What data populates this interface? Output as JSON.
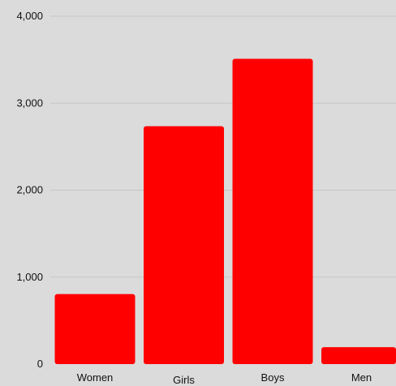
{
  "chart_data": {
    "type": "bar",
    "title": "",
    "xlabel": "",
    "ylabel": "",
    "categories": [
      "Women",
      "Girls",
      "Boys",
      "Men"
    ],
    "values": [
      805,
      2735,
      3510,
      195
    ],
    "ylim": [
      0,
      4000
    ],
    "yticks": [
      0,
      1000,
      2000,
      3000,
      4000
    ],
    "ytick_labels": [
      "0",
      "1,000",
      "2,000",
      "3,000",
      "4,000"
    ],
    "grid": true,
    "legend": "none",
    "colors": {
      "bar": "#ff0000",
      "background": "#dbdbdb",
      "grid": "#c6c6c6",
      "text": "#111111"
    }
  }
}
